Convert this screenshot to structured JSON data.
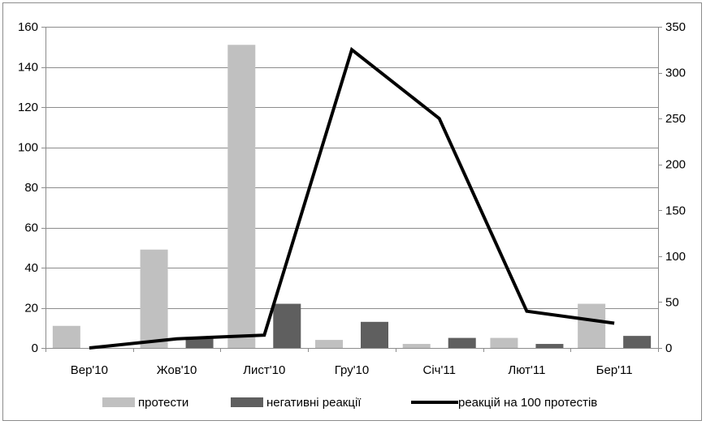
{
  "chart_data": {
    "type": "bar",
    "categories": [
      "Вер'10",
      "Жов'10",
      "Лист'10",
      "Гру'10",
      "Січ'11",
      "Лют'11",
      "Бер'11"
    ],
    "series": [
      {
        "name": "протести",
        "kind": "bar",
        "axis": "left",
        "color": "#c0c0c0",
        "values": [
          11,
          49,
          151,
          4,
          2,
          5,
          22
        ]
      },
      {
        "name": "негативні реакції",
        "kind": "bar",
        "axis": "left",
        "color": "#5f5f5f",
        "values": [
          0,
          5,
          22,
          13,
          5,
          2,
          6
        ]
      },
      {
        "name": "реакцій на 100 протестів",
        "kind": "line",
        "axis": "right",
        "color": "#000000",
        "values": [
          0,
          10,
          14,
          325,
          250,
          40,
          27
        ]
      }
    ],
    "left_axis": {
      "ylim": [
        0,
        160
      ],
      "ticks": [
        0,
        20,
        40,
        60,
        80,
        100,
        120,
        140,
        160
      ]
    },
    "right_axis": {
      "ylim": [
        0,
        350
      ],
      "ticks": [
        0,
        50,
        100,
        150,
        200,
        250,
        300,
        350
      ]
    },
    "grid": true,
    "legend_position": "bottom"
  }
}
